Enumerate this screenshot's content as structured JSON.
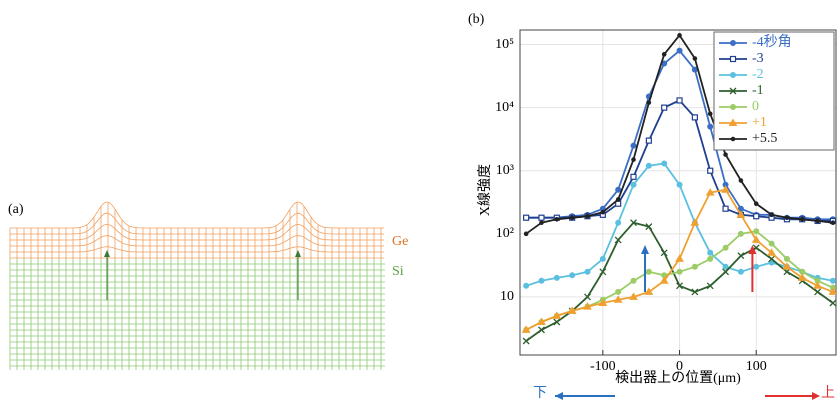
{
  "panel_a": {
    "label": "(a)",
    "layers": [
      "Ge",
      "Si"
    ]
  },
  "chart_data": {
    "type": "line",
    "label": "(b)",
    "x_label": "検出器上の位置(μm)",
    "y_label": "X線強度",
    "annotations": [
      "下",
      "上"
    ],
    "x": [
      -200,
      -180,
      -160,
      -140,
      -120,
      -100,
      -80,
      -60,
      -40,
      -20,
      0,
      20,
      40,
      60,
      80,
      100,
      120,
      140,
      160,
      180,
      200
    ],
    "series": [
      {
        "name": "-4秒角",
        "color": "#3b6fc6",
        "marker": "circle",
        "values": [
          180,
          180,
          180,
          190,
          200,
          250,
          500,
          2500,
          15000,
          50000,
          80000,
          40000,
          5000,
          600,
          250,
          200,
          200,
          180,
          180,
          170,
          170
        ]
      },
      {
        "name": "-3",
        "color": "#1f3f8f",
        "marker": "square",
        "values": [
          180,
          180,
          180,
          180,
          190,
          200,
          300,
          800,
          3000,
          10000,
          13000,
          7000,
          1000,
          250,
          200,
          190,
          180,
          170,
          170,
          160,
          160
        ]
      },
      {
        "name": "-2",
        "color": "#5bc0e0",
        "marker": "circle",
        "values": [
          15,
          18,
          20,
          22,
          25,
          40,
          150,
          600,
          1200,
          1300,
          600,
          150,
          50,
          30,
          25,
          30,
          35,
          30,
          25,
          20,
          18
        ]
      },
      {
        "name": "-1",
        "color": "#2e5e2e",
        "marker": "cross",
        "values": [
          2,
          3,
          4,
          6,
          10,
          25,
          80,
          150,
          130,
          50,
          15,
          12,
          15,
          25,
          45,
          60,
          40,
          25,
          18,
          12,
          8
        ]
      },
      {
        "name": "0",
        "color": "#9ccc65",
        "marker": "circle",
        "values": [
          3,
          4,
          5,
          6,
          7,
          9,
          12,
          18,
          25,
          22,
          25,
          30,
          40,
          60,
          100,
          110,
          70,
          40,
          25,
          18,
          14
        ]
      },
      {
        "name": "+1",
        "color": "#f0a030",
        "marker": "triangle",
        "values": [
          3,
          4,
          5,
          6,
          7,
          8,
          9,
          10,
          12,
          18,
          40,
          150,
          450,
          500,
          200,
          80,
          50,
          30,
          20,
          15,
          12
        ]
      },
      {
        "name": "+5.5",
        "color": "#222222",
        "marker": "dot",
        "values": [
          100,
          150,
          170,
          180,
          190,
          220,
          350,
          1500,
          12000,
          70000,
          140000,
          60000,
          8000,
          1800,
          700,
          300,
          200,
          180,
          170,
          160,
          150
        ]
      }
    ],
    "xlim": [
      -208,
      204
    ],
    "xticks": [
      -100,
      0,
      100
    ],
    "ylim": [
      1.2,
      170000
    ],
    "ylog": true,
    "yticks": [
      10,
      {
        "value": 100,
        "label": "10²"
      },
      {
        "value": 1000,
        "label": "10³"
      },
      {
        "value": 10000,
        "label": "10⁴"
      },
      {
        "value": 100000,
        "label": "10⁵"
      }
    ],
    "grid": true,
    "legend": "upper right"
  }
}
